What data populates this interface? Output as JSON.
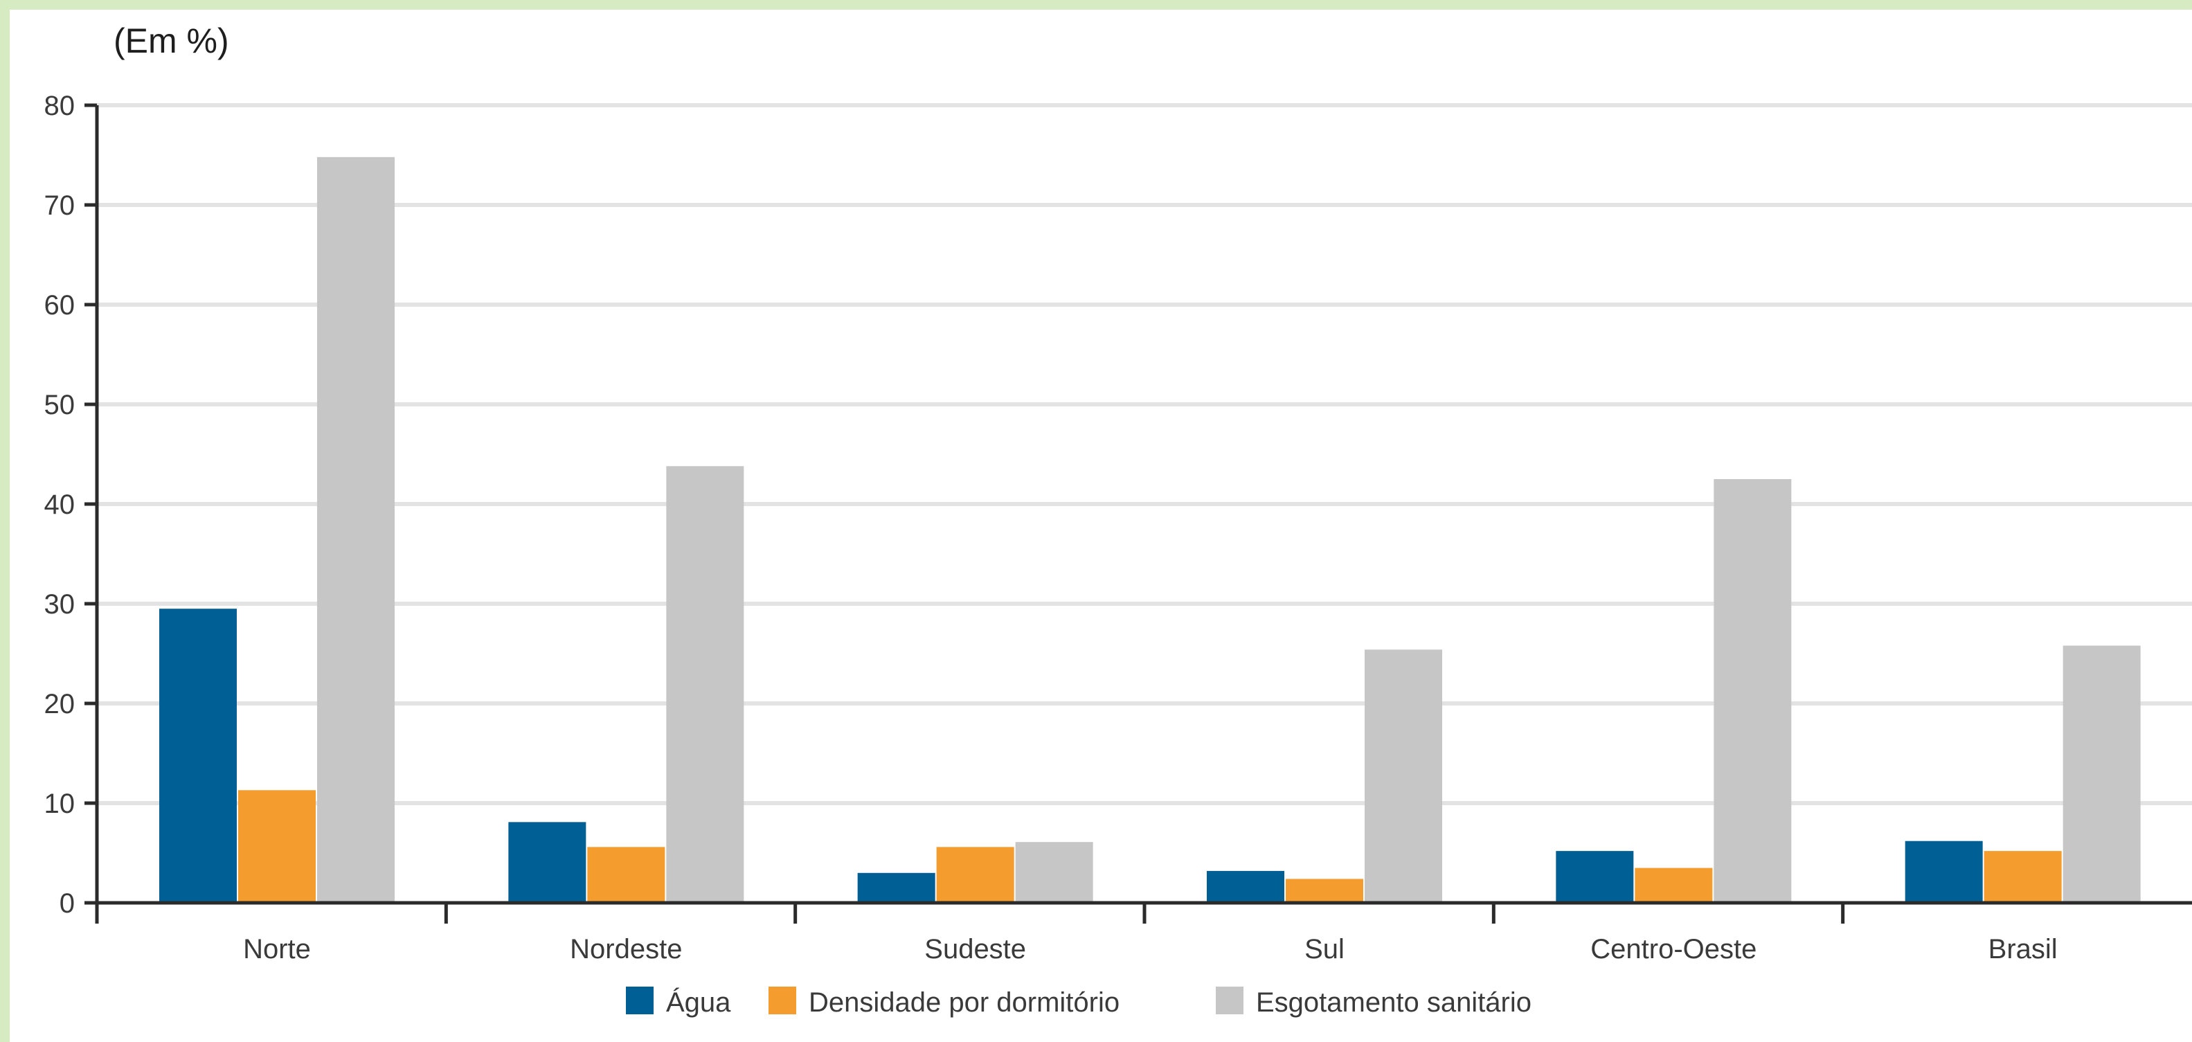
{
  "chart_data": {
    "type": "bar",
    "unit_label": "(Em %)",
    "categories": [
      "Norte",
      "Nordeste",
      "Sudeste",
      "Sul",
      "Centro-Oeste",
      "Brasil"
    ],
    "series": [
      {
        "name": "Água",
        "color": "#005f94",
        "values": [
          29.5,
          8.1,
          3.0,
          3.2,
          5.2,
          6.2
        ]
      },
      {
        "name": "Densidade por dormitório",
        "color": "#f49c2e",
        "values": [
          11.3,
          5.6,
          5.6,
          2.4,
          3.5,
          5.2
        ]
      },
      {
        "name": "Esgotamento sanitário",
        "color": "#c6c6c6",
        "values": [
          74.8,
          43.8,
          6.1,
          25.4,
          42.5,
          25.8
        ]
      }
    ],
    "y_ticks": [
      "0",
      "10",
      "20",
      "30",
      "40",
      "50",
      "60",
      "70",
      "80"
    ],
    "ylim": [
      0,
      80
    ],
    "grid": true,
    "legend_position": "bottom-center"
  }
}
